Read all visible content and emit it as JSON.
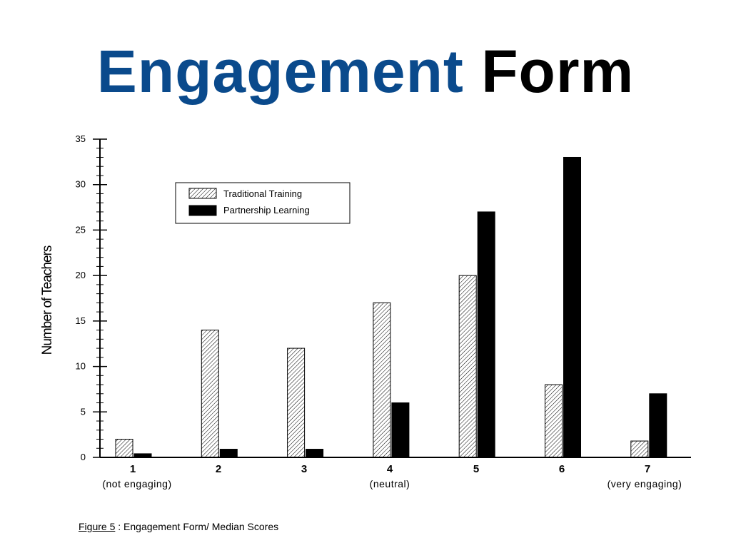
{
  "slide": {
    "title_part1": "Engagement",
    "title_part2": "Form"
  },
  "caption": {
    "figure_label": "Figure 5",
    "separator": " : ",
    "text": "Engagement Form/ Median Scores"
  },
  "colors": {
    "title_accent": "#0a4a8c",
    "series_partnership": "#000000",
    "series_traditional_pattern": "diagonal-hatch"
  },
  "chart_data": {
    "type": "bar",
    "title": "",
    "xlabel": "",
    "ylabel": "Number of Teachers",
    "ylim": [
      0,
      35
    ],
    "yticks": [
      0,
      5,
      10,
      15,
      20,
      25,
      30,
      35
    ],
    "categories": [
      "1",
      "2",
      "3",
      "4",
      "5",
      "6",
      "7"
    ],
    "category_sublabels": [
      "(not engaging)",
      "",
      "",
      "(neutral)",
      "",
      "",
      "(very engaging)"
    ],
    "series": [
      {
        "name": "Traditional Training",
        "values": [
          2,
          14,
          12,
          17,
          20,
          8,
          1.8
        ]
      },
      {
        "name": "Partnership Learning",
        "values": [
          0.4,
          0.9,
          0.9,
          6,
          27,
          33,
          7
        ]
      }
    ],
    "legend_position": "top-left",
    "grid": false
  }
}
